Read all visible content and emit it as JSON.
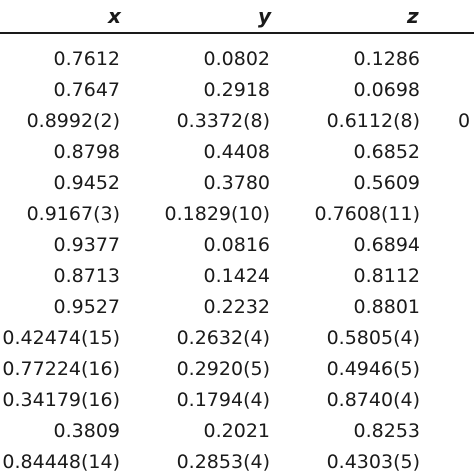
{
  "table": {
    "headers": {
      "x": "x",
      "y": "y",
      "z": "z"
    },
    "rows": [
      {
        "x": "0.7612",
        "y": "0.0802",
        "z": "0.1286",
        "extra": ""
      },
      {
        "x": "0.7647",
        "y": "0.2918",
        "z": "0.0698",
        "extra": ""
      },
      {
        "x": "0.8992(2)",
        "y": "0.3372(8)",
        "z": "0.6112(8)",
        "extra": "0"
      },
      {
        "x": "0.8798",
        "y": "0.4408",
        "z": "0.6852",
        "extra": ""
      },
      {
        "x": "0.9452",
        "y": "0.3780",
        "z": "0.5609",
        "extra": ""
      },
      {
        "x": "0.9167(3)",
        "y": "0.1829(10)",
        "z": "0.7608(11)",
        "extra": ""
      },
      {
        "x": "0.9377",
        "y": "0.0816",
        "z": "0.6894",
        "extra": ""
      },
      {
        "x": "0.8713",
        "y": "0.1424",
        "z": "0.8112",
        "extra": ""
      },
      {
        "x": "0.9527",
        "y": "0.2232",
        "z": "0.8801",
        "extra": ""
      },
      {
        "x": "0.42474(15)",
        "y": "0.2632(4)",
        "z": "0.5805(4)",
        "extra": ""
      },
      {
        "x": "0.77224(16)",
        "y": "0.2920(5)",
        "z": "0.4946(5)",
        "extra": ""
      },
      {
        "x": "0.34179(16)",
        "y": "0.1794(4)",
        "z": "0.8740(4)",
        "extra": ""
      },
      {
        "x": "0.3809",
        "y": "0.2021",
        "z": "0.8253",
        "extra": ""
      },
      {
        "x": "0.84448(14)",
        "y": "0.2853(4)",
        "z": "0.4303(5)",
        "extra": ""
      }
    ]
  }
}
